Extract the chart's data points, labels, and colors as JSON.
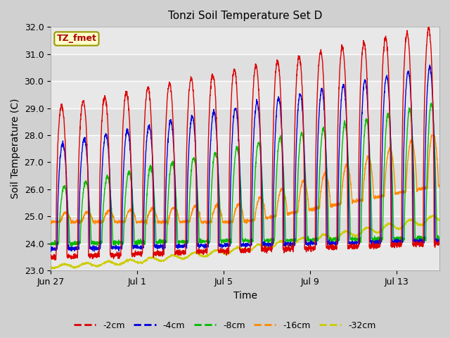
{
  "title": "Tonzi Soil Temperature Set D",
  "xlabel": "Time",
  "ylabel": "Soil Temperature (C)",
  "ylim": [
    23.0,
    32.0
  ],
  "yticks": [
    23.0,
    24.0,
    25.0,
    26.0,
    27.0,
    28.0,
    29.0,
    30.0,
    31.0,
    32.0
  ],
  "xtick_labels": [
    "Jun 27",
    "Jul 1",
    "Jul 5",
    "Jul 9",
    "Jul 13"
  ],
  "xtick_pos": [
    0,
    4,
    8,
    12,
    16
  ],
  "xlim": [
    0,
    18
  ],
  "colors": {
    "-2cm": "#dd0000",
    "-4cm": "#0000dd",
    "-8cm": "#00bb00",
    "-16cm": "#ff8800",
    "-32cm": "#cccc00"
  },
  "legend_label": "TZ_fmet",
  "legend_box_facecolor": "#ffffcc",
  "legend_box_edgecolor": "#999900",
  "legend_text_color": "#aa0000",
  "fig_facecolor": "#d0d0d0",
  "ax_facecolor": "#e8e8e8",
  "grid_color": "#ffffff",
  "n_days": 18,
  "samples_per_day": 144,
  "figsize": [
    6.4,
    4.8
  ],
  "dpi": 100
}
